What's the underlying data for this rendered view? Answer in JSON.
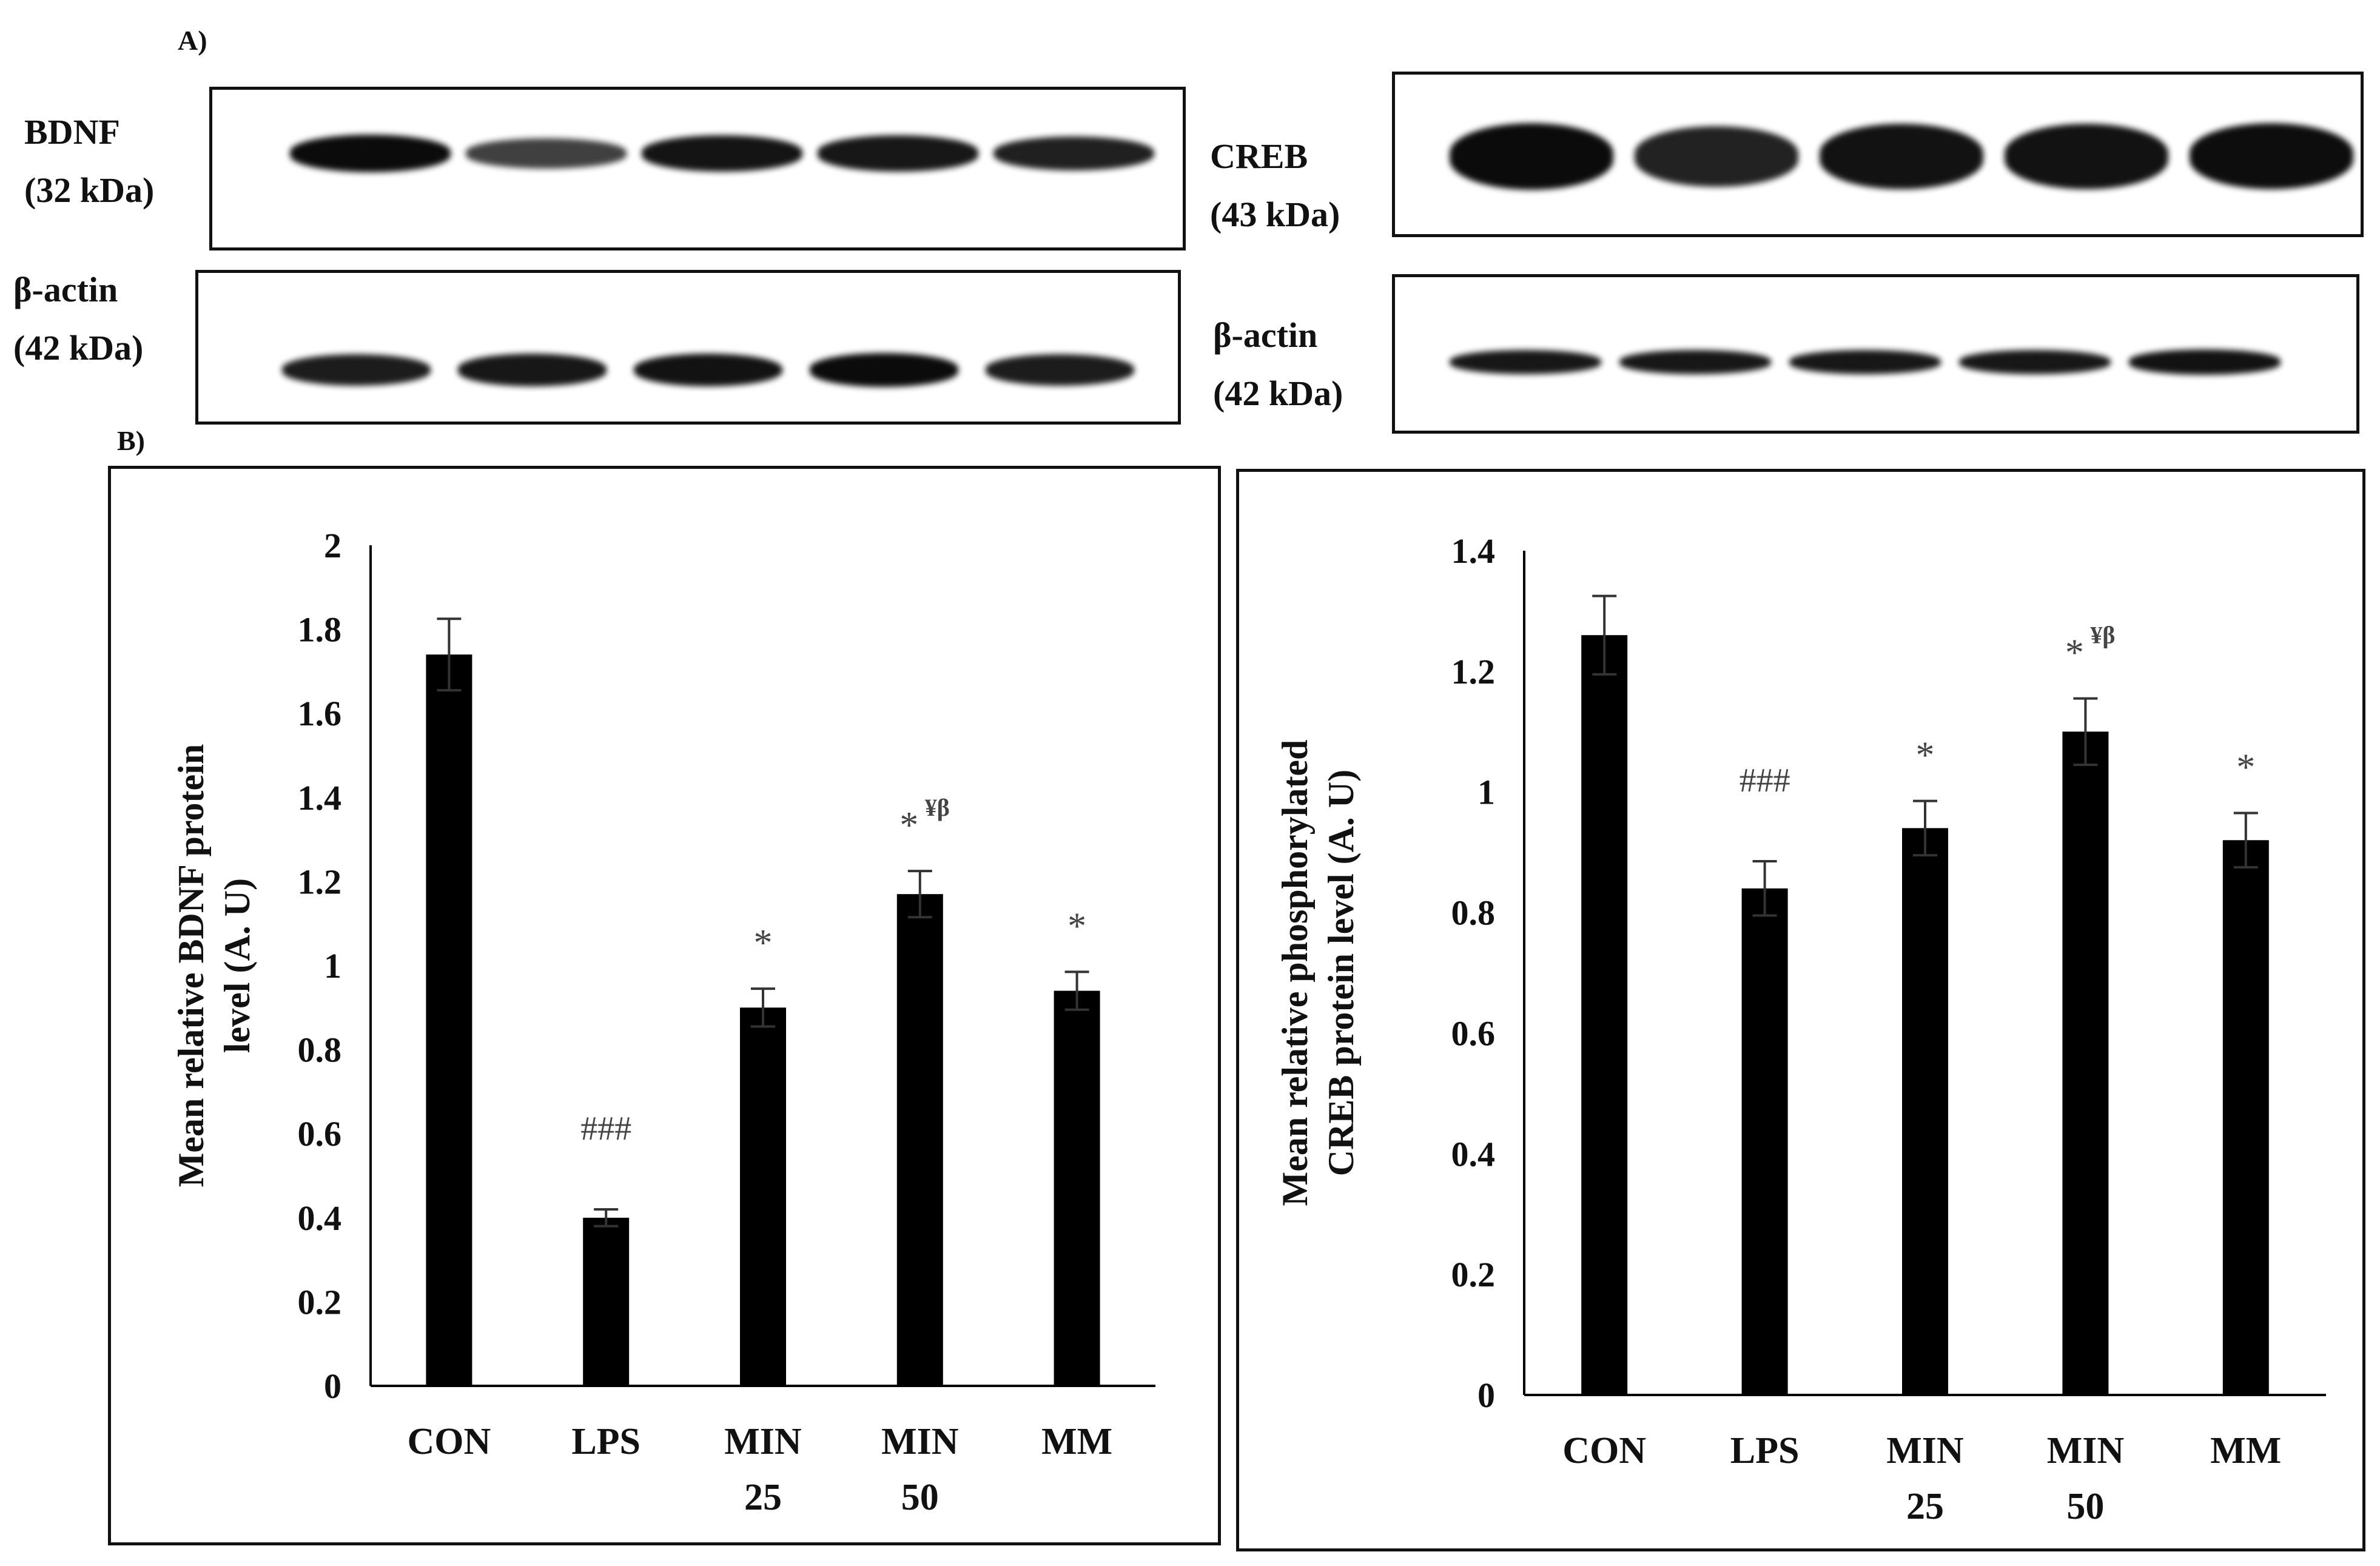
{
  "panel_a": {
    "letter": "A)",
    "left_blots": {
      "target_label": [
        "BDNF",
        "(32 kDa)"
      ],
      "loading_label": [
        "β-actin",
        "(42 kDa)"
      ],
      "target_band_intensity": [
        1.0,
        0.55,
        0.92,
        0.9,
        0.82
      ],
      "loading_band_intensity": [
        0.85,
        0.9,
        0.95,
        1.0,
        0.85
      ]
    },
    "right_blots": {
      "target_label": [
        "CREB",
        "(43 kDa)"
      ],
      "loading_label": [
        "β-actin",
        "(42 kDa)"
      ],
      "target_band_intensity": [
        1.0,
        0.8,
        0.95,
        0.95,
        0.98
      ],
      "loading_band_intensity": [
        0.9,
        0.9,
        0.9,
        0.9,
        0.95
      ]
    }
  },
  "panel_b": {
    "letter": "B)"
  },
  "chart_data": [
    {
      "type": "bar",
      "categories": [
        [
          "CON"
        ],
        [
          "LPS"
        ],
        [
          "MIN",
          "25"
        ],
        [
          "MIN",
          "50"
        ],
        [
          "MM"
        ]
      ],
      "values": [
        1.74,
        0.4,
        0.9,
        1.17,
        0.94
      ],
      "errors": [
        0.085,
        0.02,
        0.045,
        0.055,
        0.045
      ],
      "annotations": [
        {
          "main": "",
          "sup": ""
        },
        {
          "main": "###",
          "sup": ""
        },
        {
          "main": "*",
          "sup": ""
        },
        {
          "main": "*",
          "sup": "¥β"
        },
        {
          "main": "*",
          "sup": ""
        }
      ],
      "ylabel": [
        "Mean relative BDNF protein",
        "level (A. U)"
      ],
      "ylim": [
        0,
        2
      ],
      "yticks": [
        0,
        0.2,
        0.4,
        0.6,
        0.8,
        1,
        1.2,
        1.4,
        1.6,
        1.8,
        2
      ],
      "ytick_labels": [
        "0",
        "0.2",
        "0.4",
        "0.6",
        "0.8",
        "1",
        "1.2",
        "1.4",
        "1.6",
        "1.8",
        "2"
      ],
      "grid": false,
      "bar_color": "#000000"
    },
    {
      "type": "bar",
      "categories": [
        [
          "CON"
        ],
        [
          "LPS"
        ],
        [
          "MIN",
          "25"
        ],
        [
          "MIN",
          "50"
        ],
        [
          "MM"
        ]
      ],
      "values": [
        1.26,
        0.84,
        0.94,
        1.1,
        0.92
      ],
      "errors": [
        0.065,
        0.045,
        0.045,
        0.055,
        0.045
      ],
      "annotations": [
        {
          "main": "",
          "sup": ""
        },
        {
          "main": "###",
          "sup": ""
        },
        {
          "main": "*",
          "sup": ""
        },
        {
          "main": "*",
          "sup": "¥β"
        },
        {
          "main": "*",
          "sup": ""
        }
      ],
      "ylabel": [
        "Mean relative phosphorylated",
        "CREB protein level (A. U)"
      ],
      "ylim": [
        0,
        1.4
      ],
      "yticks": [
        0,
        0.2,
        0.4,
        0.6,
        0.8,
        1,
        1.2,
        1.4
      ],
      "ytick_labels": [
        "0",
        "0.2",
        "0.4",
        "0.6",
        "0.8",
        "1",
        "1.2",
        "1.4"
      ],
      "grid": false,
      "bar_color": "#000000"
    }
  ]
}
